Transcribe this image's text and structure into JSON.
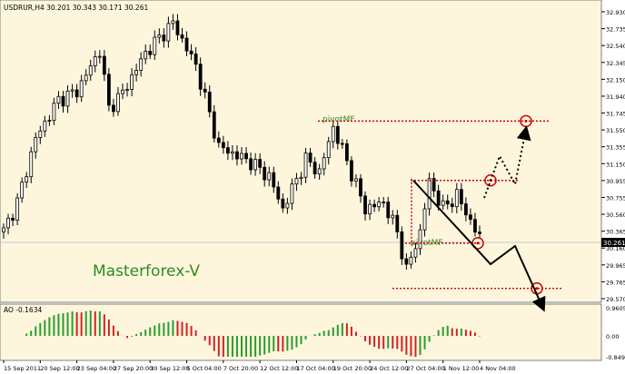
{
  "chart_data": {
    "type": "candlestick",
    "symbol_header": "USDRUR,H4  30.201 30.343 30.171 30.261",
    "watermark": "Masterforex-V",
    "price_axis_labels": [
      "32.930",
      "32.735",
      "32.540",
      "32.345",
      "32.150",
      "31.940",
      "31.745",
      "31.550",
      "31.355",
      "31.150",
      "30.955",
      "30.755",
      "30.560",
      "30.365",
      "30.160",
      "29.965",
      "29.765",
      "29.570"
    ],
    "current_price_label": "30.261",
    "ylim": [
      29.57,
      32.93
    ],
    "x_labels": [
      "15 Sep 2011",
      "20 Sep 12:00",
      "23 Sep 04:00",
      "27 Sep 20:00",
      "30 Sep 12:00",
      "5 Oct 04:00",
      "7 Oct 20:00",
      "12 Oct 12:00",
      "17 Oct 04:00",
      "19 Oct 20:00",
      "24 Oct 12:00",
      "27 Oct 04:00",
      "1 Nov 12:00",
      "4 Nov 04:00"
    ],
    "anchors": [
      [
        0,
        30.36
      ],
      [
        3,
        30.7
      ],
      [
        7,
        31.45
      ],
      [
        12,
        31.9
      ],
      [
        16,
        32.0
      ],
      [
        21,
        32.48
      ],
      [
        23,
        31.8
      ],
      [
        26,
        31.98
      ],
      [
        31,
        32.45
      ],
      [
        37,
        32.8
      ],
      [
        42,
        32.3
      ],
      [
        47,
        31.35
      ],
      [
        54,
        31.17
      ],
      [
        58,
        31.0
      ],
      [
        61,
        30.62
      ],
      [
        66,
        31.2
      ],
      [
        69,
        31.05
      ],
      [
        72,
        31.58
      ],
      [
        75,
        31.18
      ],
      [
        79,
        30.62
      ],
      [
        83,
        30.7
      ],
      [
        86,
        30.35
      ],
      [
        88,
        29.9
      ],
      [
        91,
        30.35
      ],
      [
        93,
        30.94
      ],
      [
        96,
        30.63
      ],
      [
        99,
        30.78
      ],
      [
        104,
        30.28
      ]
    ],
    "indicator": {
      "name": "AO",
      "header": "AO -0.1634",
      "axis_labels": [
        "0.9605",
        "0.00",
        "-0.8492"
      ],
      "ylim": [
        -0.8492,
        0.9605
      ]
    },
    "annotations": {
      "pivot_labels": [
        "pivotMF",
        "pivotMF"
      ],
      "levels": [
        31.65,
        30.955,
        30.22,
        29.69
      ],
      "colors": {
        "level": "#cc0000",
        "arrow": "#000000",
        "watermark": "#2e8b22",
        "pivot_text": "#2e8b22",
        "candle": "#000000",
        "ao_up": "#2c9c2c",
        "ao_down": "#d22222"
      }
    }
  }
}
